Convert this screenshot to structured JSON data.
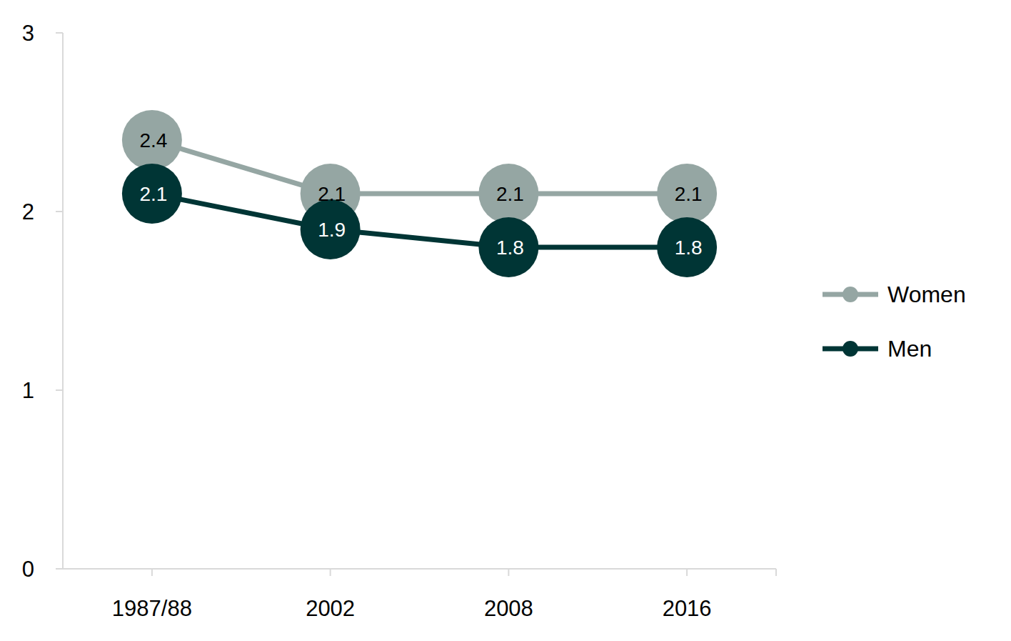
{
  "chart_data": {
    "type": "line",
    "categories": [
      "1987/88",
      "2002",
      "2008",
      "2016"
    ],
    "series": [
      {
        "name": "Women",
        "color": "#95a6a3",
        "values": [
          2.4,
          2.1,
          2.1,
          2.1
        ]
      },
      {
        "name": "Men",
        "color": "#003535",
        "values": [
          2.1,
          1.9,
          1.8,
          1.8
        ]
      }
    ],
    "ylim": [
      0,
      3
    ],
    "yticks": [
      0,
      1,
      2,
      3
    ],
    "grid": false,
    "legend": "right",
    "data_labels": true,
    "marker": "circle"
  }
}
